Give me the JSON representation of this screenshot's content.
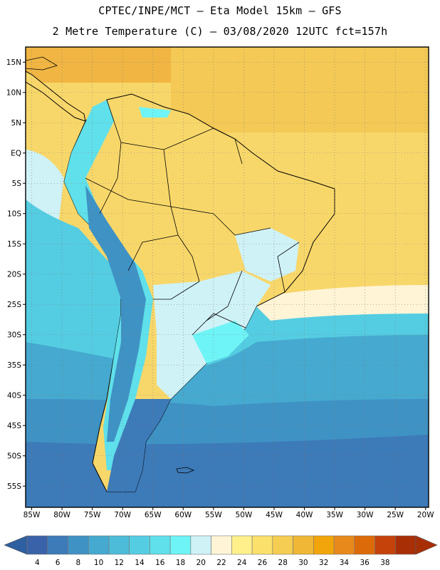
{
  "header": {
    "title_line1": "CPTEC/INPE/MCT –  Eta Model 15km – GFS",
    "title_line2": "2 Metre Temperature (C) – 03/08/2020 12UTC fct=157h"
  },
  "map": {
    "region": "South America",
    "lon_range": [
      -86,
      -19.5
    ],
    "lat_range": [
      -58.5,
      17.5
    ],
    "lat_labels": [
      "15N",
      "10N",
      "5N",
      "EQ",
      "5S",
      "10S",
      "15S",
      "20S",
      "25S",
      "30S",
      "35S",
      "40S",
      "45S",
      "50S",
      "55S"
    ],
    "lon_labels": [
      "85W",
      "80W",
      "75W",
      "70W",
      "65W",
      "60W",
      "55W",
      "50W",
      "45W",
      "40W",
      "35W",
      "30W",
      "25W",
      "20W"
    ],
    "gridlines": "dotted"
  },
  "colorbar": {
    "labels": [
      "4",
      "6",
      "8",
      "10",
      "12",
      "14",
      "16",
      "18",
      "20",
      "22",
      "24",
      "26",
      "28",
      "30",
      "32",
      "34",
      "36",
      "38"
    ],
    "colors": [
      "#3a62a8",
      "#3d7ab8",
      "#3f92c4",
      "#46a9cf",
      "#4dbcd8",
      "#54cde2",
      "#5fe0ea",
      "#6ef4f6",
      "#cff2f7",
      "#fff4d6",
      "#fff08c",
      "#fbe06c",
      "#f5cd52",
      "#efb735",
      "#f2a50a",
      "#e8891b",
      "#dd6a08",
      "#c5420b",
      "#a82e06"
    ],
    "low_arrow_color": "#2e5fa0",
    "high_arrow_color": "#a82e06"
  }
}
